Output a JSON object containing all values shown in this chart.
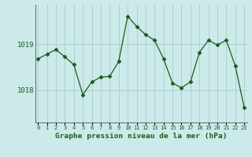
{
  "x": [
    0,
    1,
    2,
    3,
    4,
    5,
    6,
    7,
    8,
    9,
    10,
    11,
    12,
    13,
    14,
    15,
    16,
    17,
    18,
    19,
    20,
    21,
    22,
    23
  ],
  "y": [
    1018.68,
    1018.78,
    1018.88,
    1018.72,
    1018.55,
    1017.9,
    1018.18,
    1018.28,
    1018.3,
    1018.62,
    1019.6,
    1019.38,
    1019.2,
    1019.08,
    1018.68,
    1018.15,
    1018.05,
    1018.18,
    1018.82,
    1019.08,
    1018.98,
    1019.08,
    1018.52,
    1017.62
  ],
  "line_color": "#1a5c1a",
  "marker": "D",
  "marker_size": 2.5,
  "bg_color": "#cceaea",
  "grid_color": "#aacccc",
  "axis_label_color": "#1a5c1a",
  "tick_color": "#1a5c1a",
  "yticks": [
    1018,
    1019
  ],
  "ylim": [
    1017.3,
    1019.85
  ],
  "xlim": [
    -0.3,
    23.3
  ],
  "xlabel": "Graphe pression niveau de la mer (hPa)"
}
